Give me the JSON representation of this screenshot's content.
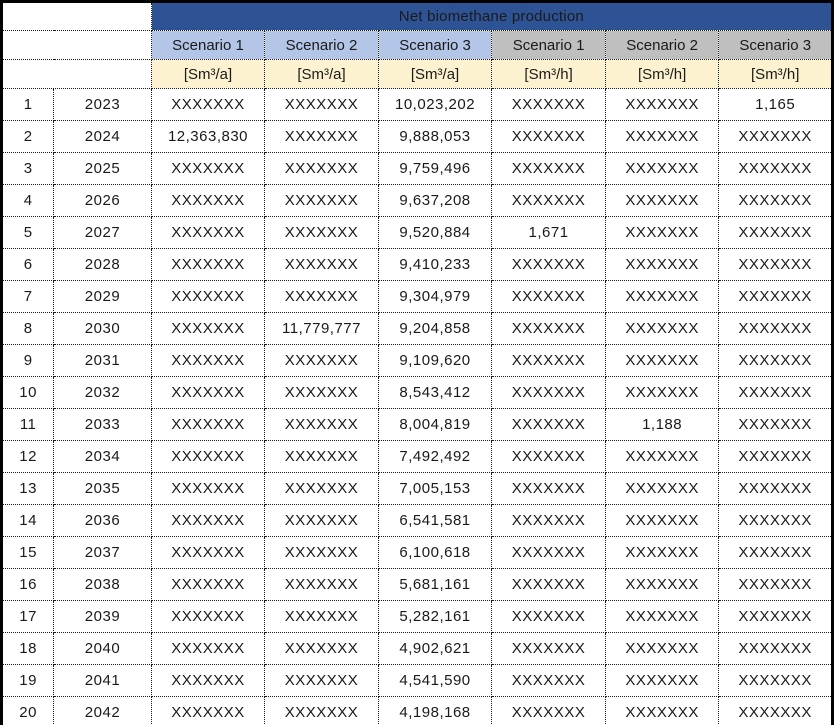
{
  "colors": {
    "header_dark_blue": "#2E5395",
    "header_light_blue": "#B4C6E7",
    "header_gray": "#BFBFBF",
    "unit_row_cream": "#FDF2CF",
    "title_text": "#FFFFFF",
    "outer_border": "#000000",
    "grid_dotted": "#1A1A1A"
  },
  "chart_data": {
    "type": "table",
    "title": "Net biomethane production",
    "placeholder": "XXXXXXX",
    "scenario_headers": [
      "Scenario 1",
      "Scenario 2",
      "Scenario 3",
      "Scenario 1",
      "Scenario 2",
      "Scenario 3"
    ],
    "unit_headers": [
      "[Sm³/a]",
      "[Sm³/a]",
      "[Sm³/a]",
      "[Sm³/h]",
      "[Sm³/h]",
      "[Sm³/h]"
    ],
    "rows": [
      [
        "1",
        "2023",
        "XXXXXXX",
        "XXXXXXX",
        "10,023,202",
        "XXXXXXX",
        "XXXXXXX",
        "1,165"
      ],
      [
        "2",
        "2024",
        "12,363,830",
        "XXXXXXX",
        "9,888,053",
        "XXXXXXX",
        "XXXXXXX",
        "XXXXXXX"
      ],
      [
        "3",
        "2025",
        "XXXXXXX",
        "XXXXXXX",
        "9,759,496",
        "XXXXXXX",
        "XXXXXXX",
        "XXXXXXX"
      ],
      [
        "4",
        "2026",
        "XXXXXXX",
        "XXXXXXX",
        "9,637,208",
        "XXXXXXX",
        "XXXXXXX",
        "XXXXXXX"
      ],
      [
        "5",
        "2027",
        "XXXXXXX",
        "XXXXXXX",
        "9,520,884",
        "1,671",
        "XXXXXXX",
        "XXXXXXX"
      ],
      [
        "6",
        "2028",
        "XXXXXXX",
        "XXXXXXX",
        "9,410,233",
        "XXXXXXX",
        "XXXXXXX",
        "XXXXXXX"
      ],
      [
        "7",
        "2029",
        "XXXXXXX",
        "XXXXXXX",
        "9,304,979",
        "XXXXXXX",
        "XXXXXXX",
        "XXXXXXX"
      ],
      [
        "8",
        "2030",
        "XXXXXXX",
        "11,779,777",
        "9,204,858",
        "XXXXXXX",
        "XXXXXXX",
        "XXXXXXX"
      ],
      [
        "9",
        "2031",
        "XXXXXXX",
        "XXXXXXX",
        "9,109,620",
        "XXXXXXX",
        "XXXXXXX",
        "XXXXXXX"
      ],
      [
        "10",
        "2032",
        "XXXXXXX",
        "XXXXXXX",
        "8,543,412",
        "XXXXXXX",
        "XXXXXXX",
        "XXXXXXX"
      ],
      [
        "11",
        "2033",
        "XXXXXXX",
        "XXXXXXX",
        "8,004,819",
        "XXXXXXX",
        "1,188",
        "XXXXXXX"
      ],
      [
        "12",
        "2034",
        "XXXXXXX",
        "XXXXXXX",
        "7,492,492",
        "XXXXXXX",
        "XXXXXXX",
        "XXXXXXX"
      ],
      [
        "13",
        "2035",
        "XXXXXXX",
        "XXXXXXX",
        "7,005,153",
        "XXXXXXX",
        "XXXXXXX",
        "XXXXXXX"
      ],
      [
        "14",
        "2036",
        "XXXXXXX",
        "XXXXXXX",
        "6,541,581",
        "XXXXXXX",
        "XXXXXXX",
        "XXXXXXX"
      ],
      [
        "15",
        "2037",
        "XXXXXXX",
        "XXXXXXX",
        "6,100,618",
        "XXXXXXX",
        "XXXXXXX",
        "XXXXXXX"
      ],
      [
        "16",
        "2038",
        "XXXXXXX",
        "XXXXXXX",
        "5,681,161",
        "XXXXXXX",
        "XXXXXXX",
        "XXXXXXX"
      ],
      [
        "17",
        "2039",
        "XXXXXXX",
        "XXXXXXX",
        "5,282,161",
        "XXXXXXX",
        "XXXXXXX",
        "XXXXXXX"
      ],
      [
        "18",
        "2040",
        "XXXXXXX",
        "XXXXXXX",
        "4,902,621",
        "XXXXXXX",
        "XXXXXXX",
        "XXXXXXX"
      ],
      [
        "19",
        "2041",
        "XXXXXXX",
        "XXXXXXX",
        "4,541,590",
        "XXXXXXX",
        "XXXXXXX",
        "XXXXXXX"
      ],
      [
        "20",
        "2042",
        "XXXXXXX",
        "XXXXXXX",
        "4,198,168",
        "XXXXXXX",
        "XXXXXXX",
        "XXXXXXX"
      ]
    ]
  }
}
